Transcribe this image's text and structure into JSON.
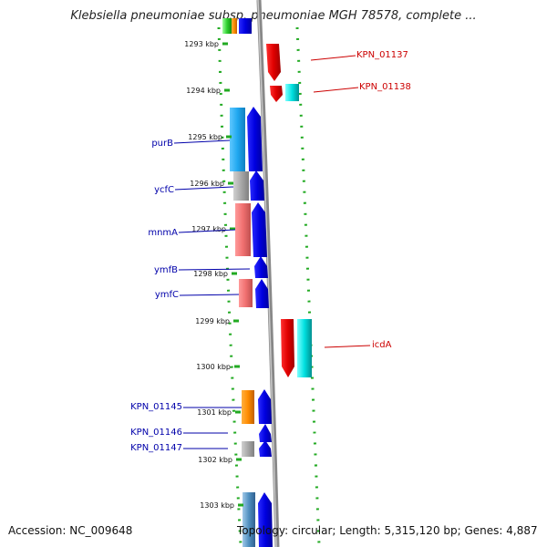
{
  "title": "Klebsiella pneumoniae subsp. pneumoniae MGH 78578, complete ...",
  "footer": {
    "accession": "Accession: NC_009648",
    "topology": "Topology: circular; Length: 5,315,120 bp; Genes: 4,887"
  },
  "ticks": [
    "1293 kbp",
    "1294 kbp",
    "1295 kbp",
    "1296 kbp",
    "1297 kbp",
    "1298 kbp",
    "1299 kbp",
    "1300 kbp",
    "1301 kbp",
    "1302 kbp",
    "1303 kbp"
  ],
  "genes_left": [
    "purB",
    "ycfC",
    "mnmA",
    "ymfB",
    "ymfC",
    "KPN_01145",
    "KPN_01146",
    "KPN_01147"
  ],
  "genes_right": [
    "KPN_01137",
    "KPN_01138",
    "icdA"
  ],
  "colors": {
    "forward_strand": "#0000ee",
    "reverse_strand": "#ee0000",
    "left_label": "#0000aa",
    "right_label": "#cc0000",
    "dotted_guide": "#22aa22"
  }
}
